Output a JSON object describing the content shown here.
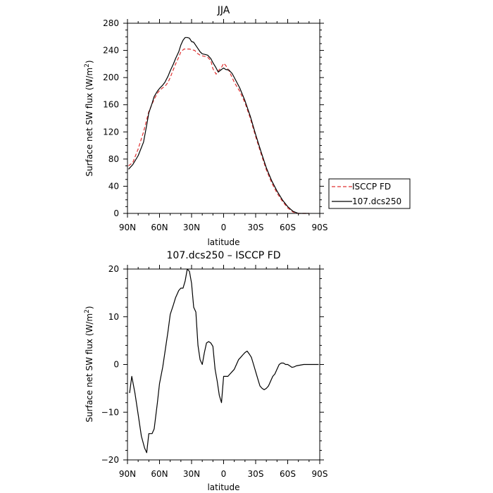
{
  "chart_data": [
    {
      "type": "line",
      "title": "JJA",
      "xlabel": "latitude",
      "ylabel": "Surface net SW flux (W/m",
      "ylabel_sup": "2",
      "ylabel_close": ")",
      "xlim": [
        90,
        -90
      ],
      "ylim": [
        0,
        280
      ],
      "xticks": [
        90,
        60,
        30,
        0,
        -30,
        -60,
        -90
      ],
      "xtick_labels": [
        "90N",
        "60N",
        "30N",
        "0",
        "30S",
        "60S",
        "90S"
      ],
      "yticks": [
        0,
        40,
        80,
        120,
        160,
        200,
        240,
        280
      ],
      "ytick_labels": [
        "0",
        "40",
        "80",
        "120",
        "160",
        "200",
        "240",
        "280"
      ],
      "legend": {
        "placement": "outside-right"
      },
      "series": [
        {
          "name": "ISCCP FD",
          "color": "#e03030",
          "dash": true,
          "x": [
            89,
            85,
            80,
            75,
            70,
            65,
            62,
            60,
            57,
            55,
            52,
            50,
            47,
            45,
            42,
            40,
            37,
            35,
            32,
            30,
            27,
            25,
            22,
            20,
            17,
            15,
            12,
            10,
            7,
            5,
            2,
            0,
            -2,
            -5,
            -8,
            -10,
            -15,
            -20,
            -25,
            -30,
            -35,
            -40,
            -45,
            -50,
            -55,
            -60,
            -65,
            -70,
            -75,
            -80
          ],
          "values": [
            70,
            75,
            95,
            120,
            150,
            168,
            177,
            181,
            185,
            187,
            193,
            200,
            212,
            220,
            230,
            238,
            242,
            242,
            242,
            241,
            240,
            236,
            233,
            232,
            231,
            230,
            225,
            213,
            205,
            210,
            215,
            221,
            218,
            210,
            200,
            193,
            180,
            163,
            140,
            113,
            88,
            64,
            45,
            30,
            18,
            8,
            2,
            0,
            0,
            0
          ]
        },
        {
          "name": "107.dcs250",
          "color": "#000000",
          "dash": false,
          "x": [
            89,
            85,
            80,
            75,
            72,
            70,
            67,
            65,
            62,
            60,
            57,
            55,
            52,
            50,
            47,
            45,
            42,
            40,
            38,
            36,
            34,
            32,
            30,
            28,
            25,
            22,
            20,
            17,
            15,
            12,
            10,
            7,
            5,
            2,
            0,
            -2,
            -5,
            -8,
            -10,
            -15,
            -20,
            -25,
            -30,
            -35,
            -40,
            -45,
            -50,
            -55,
            -60,
            -65,
            -70,
            -75,
            -80
          ],
          "values": [
            65,
            72,
            85,
            105,
            130,
            148,
            162,
            172,
            180,
            184,
            189,
            193,
            202,
            210,
            220,
            228,
            238,
            248,
            255,
            259,
            259,
            258,
            253,
            252,
            245,
            238,
            235,
            234,
            233,
            228,
            222,
            214,
            208,
            212,
            214,
            212,
            211,
            206,
            200,
            185,
            166,
            143,
            116,
            91,
            67,
            48,
            33,
            20,
            10,
            3,
            0,
            0,
            0
          ]
        }
      ]
    },
    {
      "type": "line",
      "title": "107.dcs250 – ISCCP FD",
      "xlabel": "latitude",
      "ylabel": "Surface net SW flux (W/m",
      "ylabel_sup": "2",
      "ylabel_close": ")",
      "xlim": [
        90,
        -90
      ],
      "ylim": [
        -20,
        20
      ],
      "xticks": [
        90,
        60,
        30,
        0,
        -30,
        -60,
        -90
      ],
      "xtick_labels": [
        "90N",
        "60N",
        "30N",
        "0",
        "30S",
        "60S",
        "90S"
      ],
      "yticks": [
        -20,
        -10,
        0,
        10,
        20
      ],
      "ytick_labels": [
        "−20",
        "−10",
        "0",
        "10",
        "20"
      ],
      "series": [
        {
          "color": "#000000",
          "dash": false,
          "x": [
            88,
            86,
            83,
            80,
            77,
            74,
            72,
            70,
            67,
            65,
            62,
            60,
            57,
            55,
            52,
            50,
            47,
            45,
            42,
            40,
            38,
            36,
            34,
            32,
            30,
            28,
            26,
            24,
            22,
            20,
            18,
            16,
            14,
            12,
            10,
            8,
            6,
            4,
            2,
            0,
            -2,
            -4,
            -6,
            -8,
            -10,
            -12,
            -14,
            -16,
            -18,
            -20,
            -22,
            -24,
            -26,
            -28,
            -30,
            -32,
            -34,
            -36,
            -38,
            -40,
            -42,
            -44,
            -46,
            -48,
            -50,
            -52,
            -54,
            -56,
            -58,
            -60,
            -62,
            -64,
            -66,
            -68,
            -70,
            -75,
            -80,
            -85,
            -89
          ],
          "values": [
            -6,
            -2.5,
            -6,
            -10.5,
            -15,
            -17.5,
            -18.5,
            -14.5,
            -14.5,
            -13.5,
            -8,
            -4,
            -0.5,
            2.5,
            7,
            10.5,
            12.5,
            14,
            15.5,
            16,
            16,
            17.5,
            20,
            19.5,
            17,
            12,
            11,
            4,
            1,
            0,
            2.5,
            4.5,
            4.8,
            4.5,
            3.8,
            -1,
            -3.5,
            -6.5,
            -8,
            -2.5,
            -2.5,
            -2.5,
            -2,
            -1.5,
            -1,
            0,
            1,
            1.5,
            2,
            2.5,
            2.8,
            2.2,
            1.5,
            0,
            -1.5,
            -3,
            -4.5,
            -5,
            -5.3,
            -5,
            -4.5,
            -3.5,
            -2.5,
            -2,
            -1,
            0,
            0.3,
            0.3,
            0,
            0,
            -0.3,
            -0.6,
            -0.5,
            -0.3,
            -0.2,
            0,
            0,
            0,
            0
          ]
        }
      ]
    }
  ]
}
